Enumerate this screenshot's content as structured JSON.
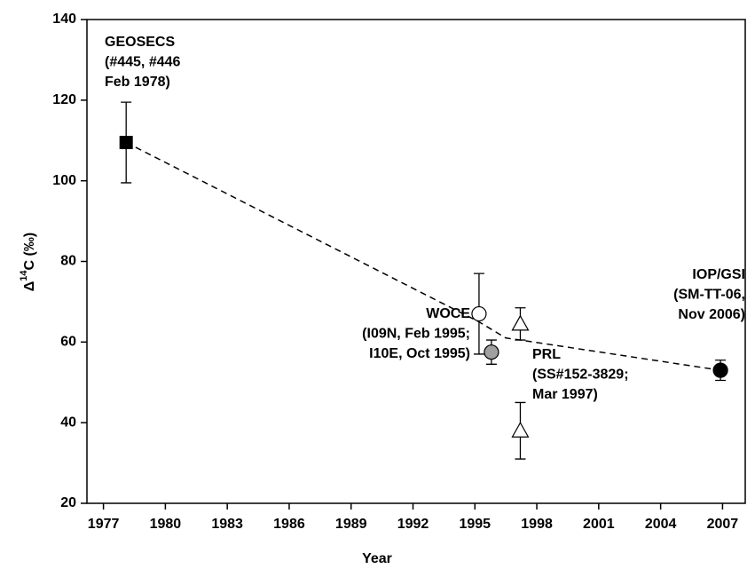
{
  "chart_data": {
    "type": "scatter",
    "y_label": {
      "prefix": "Δ",
      "sup": "14",
      "suffix": "C (‰)"
    },
    "x_label": "Year",
    "xlim": [
      1976.2,
      2008.1
    ],
    "xticks": [
      1977,
      1980,
      1983,
      1986,
      1989,
      1992,
      1995,
      1998,
      2001,
      2004,
      2007
    ],
    "ylim": [
      20,
      140
    ],
    "yticks": [
      20,
      40,
      60,
      80,
      100,
      120,
      140
    ],
    "series": [
      {
        "marker": "square",
        "color": "#000000",
        "x": [
          1978.1
        ],
        "values": [
          109.5
        ],
        "errors": [
          10
        ]
      },
      {
        "marker": "circle-open",
        "color": "#000000",
        "x": [
          1995.2
        ],
        "values": [
          67
        ],
        "errors": [
          10
        ]
      },
      {
        "marker": "circle",
        "color": "#a0a0a0",
        "x": [
          1995.8
        ],
        "values": [
          57.5
        ],
        "errors": [
          3
        ]
      },
      {
        "marker": "triangle-open",
        "color": "#000000",
        "x": [
          1997.2,
          1997.2
        ],
        "values": [
          64.5,
          38
        ],
        "errors": [
          4,
          7
        ]
      },
      {
        "marker": "circle",
        "color": "#000000",
        "x": [
          2006.9
        ],
        "values": [
          53
        ],
        "errors": [
          2.5
        ]
      }
    ],
    "trend": {
      "style": "dashed",
      "color": "#000000",
      "x": [
        1978.1,
        1995.2,
        1996.5,
        1997.2,
        2006.9
      ],
      "values": [
        109.5,
        65,
        61,
        60.5,
        53
      ]
    },
    "annotations": [
      {
        "lines": [
          "GEOSECS",
          "(#445, #446",
          "Feb 1978)"
        ]
      },
      {
        "lines": [
          "WOCE",
          "(I09N, Feb 1995;",
          "I10E, Oct 1995)"
        ]
      },
      {
        "lines": [
          "PRL",
          "(SS#152-3829;",
          "Mar 1997)"
        ]
      },
      {
        "lines": [
          "IOP/GSI",
          "(SM-TT-06,",
          "Nov 2006)"
        ]
      }
    ]
  }
}
